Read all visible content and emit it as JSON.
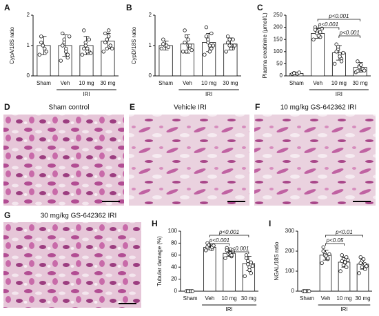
{
  "chart_data": [
    {
      "label": "A",
      "type": "bar",
      "ylabel": "CypA/18S ratio",
      "categories": [
        "Sham",
        "Veh",
        "10 mg",
        "30 mg"
      ],
      "group_label": "IRI",
      "group": [
        1,
        3
      ],
      "values": [
        1.0,
        1.0,
        1.0,
        1.15
      ],
      "errors": [
        0.3,
        0.35,
        0.3,
        0.25
      ],
      "points": [
        [
          0.7,
          1.3,
          1.0,
          0.9,
          0.8,
          1.1
        ],
        [
          0.5,
          1.4,
          1.2,
          0.9,
          0.7,
          1.0,
          1.1,
          0.8,
          0.6,
          1.3
        ],
        [
          0.7,
          1.5,
          1.0,
          0.9,
          0.8,
          0.9,
          1.1,
          0.8,
          1.2,
          0.75
        ],
        [
          0.8,
          1.4,
          1.2,
          1.5,
          1.0,
          1.1,
          0.9,
          1.3,
          1.0,
          0.9
        ]
      ],
      "ylim": [
        0,
        2
      ],
      "yticks": [
        0,
        1,
        2
      ],
      "color": "#ffffff",
      "comparisons": []
    },
    {
      "label": "B",
      "type": "bar",
      "ylabel": "CypD/18S ratio",
      "categories": [
        "Sham",
        "Veh",
        "10 mg",
        "30 mg"
      ],
      "group_label": "IRI",
      "group": [
        1,
        3
      ],
      "values": [
        1.0,
        1.05,
        1.1,
        1.05
      ],
      "errors": [
        0.15,
        0.3,
        0.3,
        0.2
      ],
      "points": [
        [
          0.9,
          1.2,
          1.0,
          1.0,
          0.95,
          1.05
        ],
        [
          0.8,
          1.5,
          1.3,
          1.0,
          0.9,
          1.1,
          0.8,
          1.2,
          1.0,
          0.85
        ],
        [
          0.7,
          1.6,
          1.2,
          1.0,
          0.9,
          1.3,
          1.1,
          0.8,
          1.4,
          1.0
        ],
        [
          0.8,
          1.3,
          1.2,
          1.0,
          0.9,
          1.1,
          1.0,
          0.9,
          1.2,
          1.0
        ]
      ],
      "ylim": [
        0,
        2
      ],
      "yticks": [
        0,
        1,
        2
      ],
      "color": "#ffffff",
      "comparisons": []
    },
    {
      "label": "C",
      "type": "bar",
      "ylabel": "Plasma creatinine (μmol/L)",
      "categories": [
        "Sham",
        "Veh",
        "10 mg",
        "30 mg"
      ],
      "group_label": "IRI",
      "group": [
        1,
        3
      ],
      "values": [
        10,
        175,
        95,
        35
      ],
      "errors": [
        3,
        20,
        30,
        20
      ],
      "points": [
        [
          8,
          12,
          10,
          9,
          14,
          11
        ],
        [
          150,
          200,
          185,
          170,
          160,
          190,
          175,
          165,
          180,
          195
        ],
        [
          50,
          130,
          110,
          90,
          70,
          100,
          120,
          80,
          60,
          95
        ],
        [
          15,
          60,
          40,
          30,
          25,
          20,
          35,
          45,
          28,
          22
        ]
      ],
      "ylim": [
        0,
        250
      ],
      "yticks": [
        0,
        50,
        100,
        150,
        200,
        250
      ],
      "color": "#ffffff",
      "comparisons": [
        {
          "between": [
            1,
            3
          ],
          "label": "p<0.001"
        },
        {
          "between": [
            1,
            2
          ],
          "label": "p<0.001"
        },
        {
          "between": [
            2,
            3
          ],
          "label": "p<0.001"
        }
      ]
    },
    {
      "label": "H",
      "type": "bar",
      "ylabel": "Tubular damage (%)",
      "categories": [
        "Sham",
        "Veh",
        "10 mg",
        "30 mg"
      ],
      "group_label": "IRI",
      "group": [
        1,
        3
      ],
      "values": [
        0,
        73,
        63,
        46
      ],
      "errors": [
        0,
        4,
        5,
        12
      ],
      "points": [
        [
          0,
          0,
          0,
          0,
          0,
          0
        ],
        [
          68,
          80,
          75,
          72,
          70,
          74,
          77,
          71,
          73,
          76
        ],
        [
          55,
          72,
          65,
          60,
          58,
          68,
          62,
          64,
          60,
          66
        ],
        [
          25,
          60,
          50,
          40,
          30,
          55,
          45,
          35,
          48,
          42
        ]
      ],
      "ylim": [
        0,
        100
      ],
      "yticks": [
        0,
        20,
        40,
        60,
        80,
        100
      ],
      "color": "#ffffff",
      "comparisons": [
        {
          "between": [
            1,
            3
          ],
          "label": "p<0.001"
        },
        {
          "between": [
            1,
            2
          ],
          "label": "p<0.001"
        },
        {
          "between": [
            2,
            3
          ],
          "label": "p<0.001"
        }
      ]
    },
    {
      "label": "I",
      "type": "bar",
      "ylabel": "NGAL/18S ratio",
      "categories": [
        "Sham",
        "Veh",
        "10 mg",
        "30 mg"
      ],
      "group_label": "IRI",
      "group": [
        1,
        3
      ],
      "values": [
        0,
        180,
        145,
        135
      ],
      "errors": [
        0,
        25,
        25,
        25
      ],
      "points": [
        [
          0,
          0,
          0,
          0,
          0,
          0
        ],
        [
          140,
          220,
          190,
          170,
          160,
          200,
          180,
          175,
          165,
          185
        ],
        [
          100,
          180,
          160,
          140,
          120,
          150,
          130,
          145,
          170,
          155
        ],
        [
          90,
          170,
          150,
          130,
          110,
          140,
          120,
          160,
          135,
          125
        ]
      ],
      "ylim": [
        0,
        300
      ],
      "yticks": [
        0,
        100,
        200,
        300
      ],
      "color": "#ffffff",
      "comparisons": [
        {
          "between": [
            1,
            3
          ],
          "label": "p<0.01"
        },
        {
          "between": [
            1,
            2
          ],
          "label": "p<0.05"
        }
      ]
    }
  ],
  "image_panels": [
    {
      "label": "D",
      "title": "Sham control"
    },
    {
      "label": "E",
      "title": "Vehicle IRI"
    },
    {
      "label": "F",
      "title": "10 mg/kg GS-642362 IRI"
    },
    {
      "label": "G",
      "title": "30 mg/kg GS-642362 IRI"
    }
  ]
}
